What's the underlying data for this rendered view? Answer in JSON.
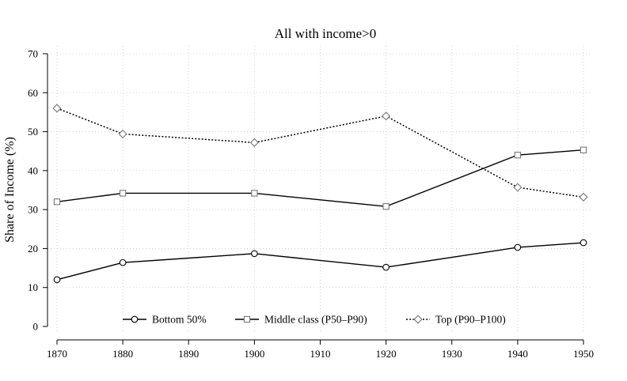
{
  "chart_data": {
    "type": "line",
    "title": "All with income>0",
    "xlabel": "",
    "ylabel": "Share of Income (%)",
    "x": [
      1870,
      1880,
      1900,
      1920,
      1940,
      1950
    ],
    "xticks": [
      1870,
      1880,
      1890,
      1900,
      1910,
      1920,
      1930,
      1940,
      1950
    ],
    "xlim": [
      1870,
      1950
    ],
    "yticks": [
      0,
      10,
      20,
      30,
      40,
      50,
      60,
      70
    ],
    "ylim": [
      0,
      70
    ],
    "grid": true,
    "legend_position": "bottom-inside",
    "series": [
      {
        "name": "Bottom 50%",
        "values": [
          12.0,
          16.4,
          18.7,
          15.2,
          20.3,
          21.5
        ],
        "marker": "circle",
        "line": "solid",
        "color": "#000000"
      },
      {
        "name": "Middle class (P50–P90)",
        "values": [
          32.0,
          34.2,
          34.2,
          30.8,
          44.0,
          45.3
        ],
        "marker": "square",
        "line": "solid",
        "color": "#000000"
      },
      {
        "name": "Top (P90–P100)",
        "values": [
          56.0,
          49.4,
          47.2,
          54.0,
          35.7,
          33.2
        ],
        "marker": "diamond",
        "line": "dotted",
        "color": "#000000"
      }
    ]
  }
}
